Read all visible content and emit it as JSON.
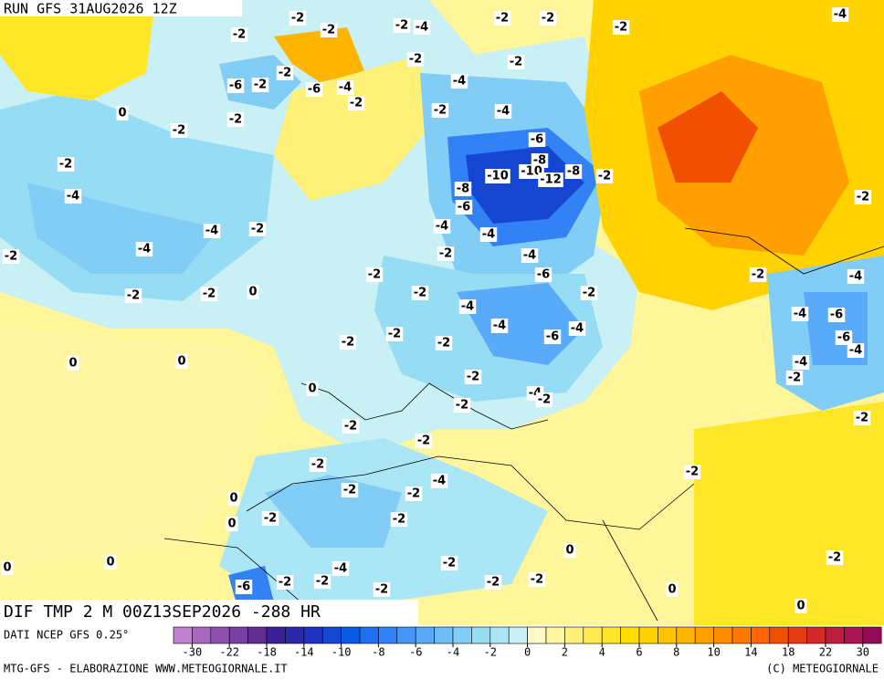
{
  "header": {
    "run": "RUN GFS 31AUG2026 12Z"
  },
  "footer": {
    "field": "DIF TMP 2 M 00Z13SEP2026 -288 HR",
    "source": "DATI NCEP GFS 0.25°",
    "credit": "MTG-GFS - ELABORAZIONE WWW.METEOGIORNALE.IT",
    "copyright": "(C) METEOGIORNALE"
  },
  "colorbar": {
    "colors": [
      "#c080d0",
      "#a868c0",
      "#9050b0",
      "#7840a0",
      "#602c90",
      "#3c1e96",
      "#2828a8",
      "#1e32be",
      "#1446d2",
      "#0a5ae6",
      "#1e6ef0",
      "#3282f5",
      "#4696fa",
      "#5aaafa",
      "#6ebef5",
      "#82cdf5",
      "#96dcf5",
      "#aae6f5",
      "#c8f0f5",
      "#fffac8",
      "#fff5a0",
      "#fff078",
      "#ffeb50",
      "#ffe628",
      "#ffdc00",
      "#ffd200",
      "#ffc300",
      "#ffb400",
      "#ffa000",
      "#ff8c00",
      "#ff7800",
      "#ff6400",
      "#f05000",
      "#e63c14",
      "#d22828",
      "#be1e3c",
      "#aa1450",
      "#960a5a"
    ],
    "ticks": [
      -30,
      -22,
      -18,
      -14,
      -10,
      -8,
      -6,
      -4,
      -2,
      0,
      2,
      4,
      6,
      8,
      10,
      14,
      18,
      22,
      30
    ]
  },
  "map_labels": [
    "-2",
    "-2",
    "-2",
    "-2",
    "-4",
    "-2",
    "-4",
    "-2",
    "-2",
    "-2",
    "-2",
    "-6",
    "-2",
    "-2",
    "-6",
    "-4",
    "-2",
    "-4",
    "0",
    "-2",
    "-2",
    "-4",
    "-2",
    "-6",
    "-2",
    "-8",
    "-10",
    "-10",
    "-12",
    "-8",
    "-2",
    "-8",
    "-4",
    "-6",
    "-2",
    "-4",
    "-2",
    "-4",
    "-4",
    "-2",
    "-4",
    "-2",
    "-4",
    "-2",
    "-6",
    "-2",
    "-4",
    "-2",
    "-2",
    "0",
    "-2",
    "-2",
    "-4",
    "-4",
    "-6",
    "-4",
    "-4",
    "-6",
    "-2",
    "-2",
    "-2",
    "-6",
    "-4",
    "-4",
    "0",
    "0",
    "-2",
    "-2",
    "0",
    "-4",
    "-2",
    "-2",
    "-2",
    "-2",
    "-2",
    "-2",
    "-2",
    "-4",
    "-2",
    "-2",
    "0",
    "-2",
    "-2",
    "0",
    "0",
    "-2",
    "0",
    "-4",
    "-2",
    "0",
    "-6",
    "-2",
    "-2",
    "-2",
    "-2",
    "-2",
    "0",
    "0"
  ]
}
